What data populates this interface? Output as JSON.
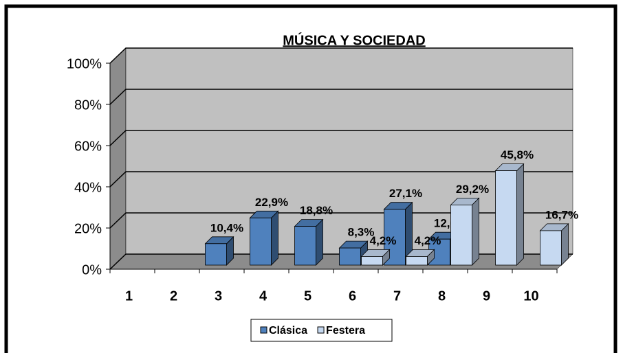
{
  "chart_data": {
    "type": "bar3d",
    "title": "MÚSICA Y SOCIEDAD",
    "categories": [
      "1",
      "2",
      "3",
      "4",
      "5",
      "6",
      "7",
      "8",
      "9",
      "10"
    ],
    "series": [
      {
        "name": "Clásica",
        "color": "#4f81bd",
        "values": [
          null,
          null,
          10.4,
          22.9,
          18.8,
          8.3,
          27.1,
          12.6,
          null,
          null
        ],
        "value_labels": [
          null,
          null,
          "10,4%",
          "22,9%",
          "18,8%",
          "8,3%",
          "27,1%",
          "12,6%",
          null,
          null
        ]
      },
      {
        "name": "Festera",
        "color": "#c6d9f1",
        "values": [
          null,
          null,
          null,
          null,
          null,
          4.2,
          4.2,
          29.2,
          45.8,
          16.7
        ],
        "value_labels": [
          null,
          null,
          null,
          null,
          null,
          "4,2%",
          "4,2%",
          "29,2%",
          "45,8%",
          "16,7%"
        ]
      }
    ],
    "ylim": [
      0,
      100
    ],
    "yticks": [
      {
        "value": 0,
        "label": "0%"
      },
      {
        "value": 20,
        "label": "20%"
      },
      {
        "value": 40,
        "label": "40%"
      },
      {
        "value": 60,
        "label": "60%"
      },
      {
        "value": 80,
        "label": "80%"
      },
      {
        "value": 100,
        "label": "100%"
      }
    ],
    "grid": true,
    "legend": "bottom"
  }
}
